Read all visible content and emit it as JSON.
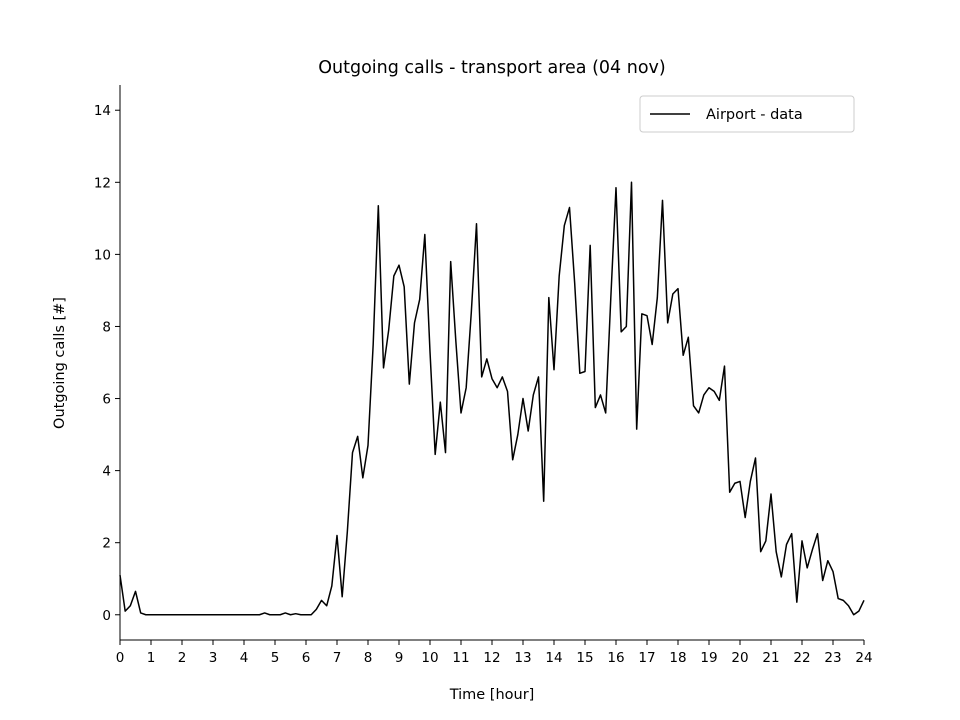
{
  "chart_data": {
    "type": "line",
    "title": "Outgoing calls - transport area (04 nov)",
    "xlabel": "Time [hour]",
    "ylabel": "Outgoing calls [#]",
    "xlim": [
      0,
      24
    ],
    "ylim": [
      -0.7,
      14.7
    ],
    "xticks": [
      0,
      1,
      2,
      3,
      4,
      5,
      6,
      7,
      8,
      9,
      10,
      11,
      12,
      13,
      14,
      15,
      16,
      17,
      18,
      19,
      20,
      21,
      22,
      23,
      24
    ],
    "yticks": [
      0,
      2,
      4,
      6,
      8,
      10,
      12,
      14
    ],
    "grid": false,
    "legend_position": "top-right",
    "series": [
      {
        "name": "Airport - data",
        "color": "#000000",
        "x": [
          0,
          0.167,
          0.333,
          0.5,
          0.667,
          0.833,
          1,
          1.167,
          1.333,
          1.5,
          1.667,
          1.833,
          2,
          2.167,
          2.333,
          2.5,
          2.667,
          2.833,
          3,
          3.167,
          3.333,
          3.5,
          3.667,
          3.833,
          4,
          4.167,
          4.333,
          4.5,
          4.667,
          4.833,
          5,
          5.167,
          5.333,
          5.5,
          5.667,
          5.833,
          6,
          6.167,
          6.333,
          6.5,
          6.667,
          6.833,
          7,
          7.167,
          7.333,
          7.5,
          7.667,
          7.833,
          8,
          8.167,
          8.333,
          8.5,
          8.667,
          8.833,
          9,
          9.167,
          9.333,
          9.5,
          9.667,
          9.833,
          10,
          10.167,
          10.333,
          10.5,
          10.667,
          10.833,
          11,
          11.167,
          11.333,
          11.5,
          11.667,
          11.833,
          12,
          12.167,
          12.333,
          12.5,
          12.667,
          12.833,
          13,
          13.167,
          13.333,
          13.5,
          13.667,
          13.833,
          14,
          14.167,
          14.333,
          14.5,
          14.667,
          14.833,
          15,
          15.167,
          15.333,
          15.5,
          15.667,
          15.833,
          16,
          16.167,
          16.333,
          16.5,
          16.667,
          16.833,
          17,
          17.167,
          17.333,
          17.5,
          17.667,
          17.833,
          18,
          18.167,
          18.333,
          18.5,
          18.667,
          18.833,
          19,
          19.167,
          19.333,
          19.5,
          19.667,
          19.833,
          20,
          20.167,
          20.333,
          20.5,
          20.667,
          20.833,
          21,
          21.167,
          21.333,
          21.5,
          21.667,
          21.833,
          22,
          22.167,
          22.333,
          22.5,
          22.667,
          22.833,
          23,
          23.167,
          23.333,
          23.5,
          23.667,
          23.833,
          24
        ],
        "y": [
          1.1,
          0.1,
          0.25,
          0.65,
          0.05,
          0,
          0,
          0,
          0,
          0,
          0,
          0,
          0,
          0,
          0,
          0,
          0,
          0,
          0,
          0,
          0,
          0,
          0,
          0,
          0,
          0,
          0,
          0,
          0.05,
          0,
          0,
          0,
          0.05,
          0,
          0.03,
          0,
          0,
          0,
          0.15,
          0.4,
          0.25,
          0.8,
          2.2,
          0.5,
          2.3,
          4.5,
          4.95,
          3.8,
          4.7,
          7.5,
          11.35,
          6.85,
          7.9,
          9.4,
          9.7,
          9.1,
          6.4,
          8.1,
          8.75,
          10.55,
          7.3,
          4.45,
          5.9,
          4.5,
          9.8,
          7.6,
          5.6,
          6.3,
          8.4,
          10.85,
          6.6,
          7.1,
          6.55,
          6.3,
          6.6,
          6.2,
          4.3,
          5,
          6,
          5.1,
          6.1,
          6.6,
          3.15,
          8.8,
          6.8,
          9.4,
          10.8,
          11.3,
          9.2,
          6.7,
          6.75,
          10.25,
          5.75,
          6.1,
          5.6,
          8.8,
          11.85,
          7.85,
          8,
          12,
          5.15,
          8.35,
          8.3,
          7.5,
          8.8,
          11.5,
          8.1,
          8.9,
          9.05,
          7.2,
          7.7,
          5.8,
          5.6,
          6.1,
          6.3,
          6.2,
          5.95,
          6.9,
          3.4,
          3.65,
          3.7,
          2.7,
          3.7,
          4.35,
          1.75,
          2.05,
          3.35,
          1.75,
          1.05,
          1.95,
          2.25,
          0.35,
          2.05,
          1.3,
          1.8,
          2.25,
          0.95,
          1.5,
          1.2,
          0.45,
          0.4,
          0.25,
          0,
          0.1,
          0.4
        ]
      }
    ]
  }
}
